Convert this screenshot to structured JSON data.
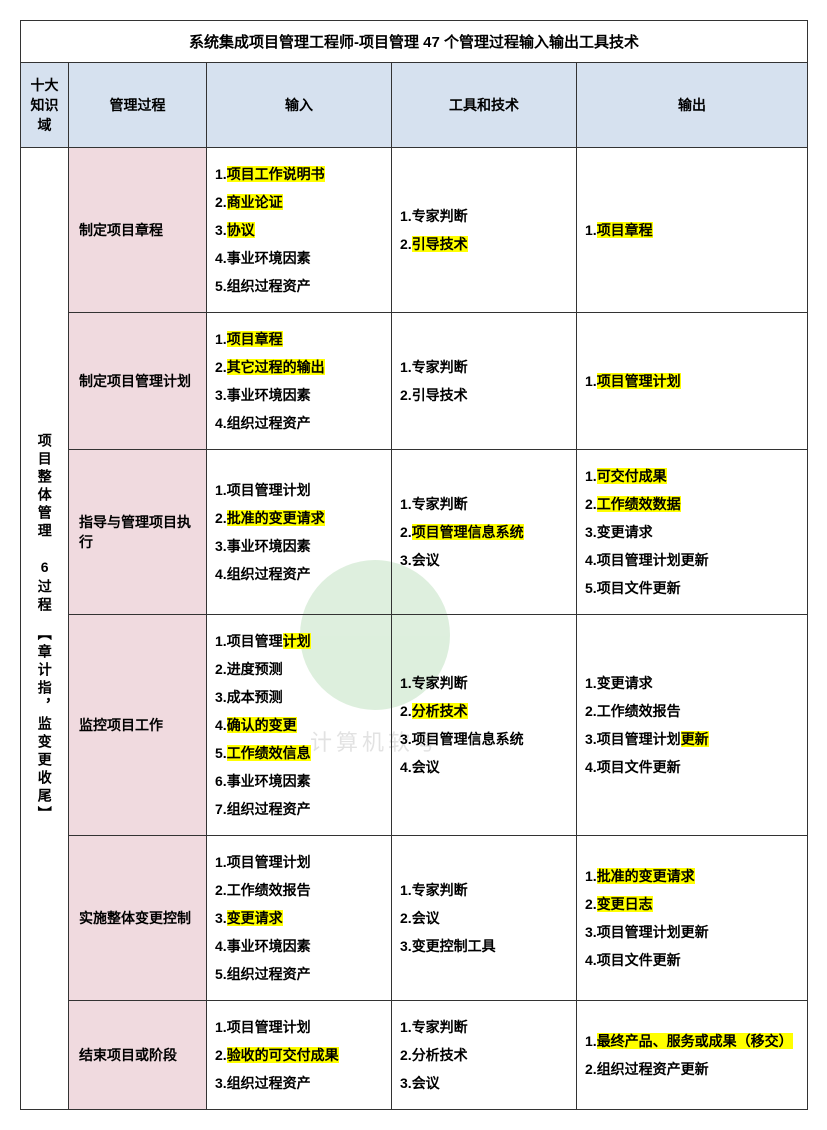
{
  "title": "系统集成项目管理工程师-项目管理 47 个管理过程输入输出工具技术",
  "headers": {
    "domain": "十大知识域",
    "process": "管理过程",
    "inputs": "输入",
    "tools": "工具和技术",
    "outputs": "输出"
  },
  "domain_label": "项目整体管理　6过程　【章计指，监变更收尾】",
  "rows": [
    {
      "process": "制定项目章程",
      "inputs": [
        {
          "n": "1.",
          "t": "项目工作说明书",
          "hl": true
        },
        {
          "n": "2.",
          "t": "商业论证",
          "hl": true
        },
        {
          "n": "3.",
          "t": "协议",
          "hl": true
        },
        {
          "n": "4.",
          "t": "事业环境因素",
          "hl": false
        },
        {
          "n": "5.",
          "t": "组织过程资产",
          "hl": false
        }
      ],
      "tools": [
        {
          "n": "1.",
          "t": "专家判断",
          "hl": false
        },
        {
          "n": "2.",
          "t": "引导技术",
          "hl": true
        }
      ],
      "outputs": [
        {
          "n": "1.",
          "t": "项目章程",
          "hl": true
        }
      ]
    },
    {
      "process": "制定项目管理计划",
      "inputs": [
        {
          "n": "1.",
          "t": "项目章程",
          "hl": true
        },
        {
          "n": "2.",
          "t": "其它过程的输出",
          "hl": true
        },
        {
          "n": "3.",
          "t": "事业环境因素",
          "hl": false
        },
        {
          "n": "4.",
          "t": "组织过程资产",
          "hl": false
        }
      ],
      "tools": [
        {
          "n": "1.",
          "t": "专家判断",
          "hl": false
        },
        {
          "n": "2.",
          "t": "引导技术",
          "hl": false
        }
      ],
      "outputs": [
        {
          "n": "1.",
          "t": "项目管理计划",
          "hl": true
        }
      ]
    },
    {
      "process": "指导与管理项目执行",
      "inputs": [
        {
          "n": "1.",
          "t": "项目管理计划",
          "hl": false
        },
        {
          "n": "2.",
          "t": "批准的变更请求",
          "hl": true
        },
        {
          "n": "3.",
          "t": "事业环境因素",
          "hl": false
        },
        {
          "n": "4.",
          "t": "组织过程资产",
          "hl": false
        }
      ],
      "tools": [
        {
          "n": "1.",
          "t": "专家判断",
          "hl": false
        },
        {
          "n": "2.",
          "t": "项目管理信息系统",
          "hl": true
        },
        {
          "n": "3.",
          "t": "会议",
          "hl": false
        }
      ],
      "outputs": [
        {
          "n": "1.",
          "t": "可交付成果",
          "hl": true
        },
        {
          "n": "2.",
          "t": "工作绩效数据",
          "hl": true
        },
        {
          "n": "3.",
          "t": "变更请求",
          "hl": false
        },
        {
          "n": "4.",
          "t": "项目管理计划更新",
          "hl": false
        },
        {
          "n": "5.",
          "t": "项目文件更新",
          "hl": false
        }
      ]
    },
    {
      "process": "监控项目工作",
      "inputs": [
        {
          "n": "1.",
          "t": "项目管理计划",
          "hl": false,
          "hlpart": "计划"
        },
        {
          "n": "2.",
          "t": "进度预测",
          "hl": false
        },
        {
          "n": "3.",
          "t": "成本预测",
          "hl": false
        },
        {
          "n": "4.",
          "t": "确认的变更",
          "hl": true
        },
        {
          "n": "5.",
          "t": "工作绩效信息",
          "hl": true
        },
        {
          "n": "6.",
          "t": "事业环境因素",
          "hl": false
        },
        {
          "n": "7.",
          "t": "组织过程资产",
          "hl": false
        }
      ],
      "tools": [
        {
          "n": "1.",
          "t": "专家判断",
          "hl": false
        },
        {
          "n": "2.",
          "t": "分析技术",
          "hl": true
        },
        {
          "n": "3.",
          "t": "项目管理信息系统",
          "hl": false
        },
        {
          "n": "4.",
          "t": "会议",
          "hl": false
        }
      ],
      "outputs": [
        {
          "n": "1.",
          "t": "变更请求",
          "hl": false
        },
        {
          "n": "2.",
          "t": "工作绩效报告",
          "hl": false
        },
        {
          "n": "3.",
          "t": "项目管理计划更新",
          "hl": false,
          "hlpart": "更新"
        },
        {
          "n": "4.",
          "t": "项目文件更新",
          "hl": false
        }
      ]
    },
    {
      "process": "实施整体变更控制",
      "inputs": [
        {
          "n": "1.",
          "t": "项目管理计划",
          "hl": false
        },
        {
          "n": "2.",
          "t": "工作绩效报告",
          "hl": false
        },
        {
          "n": "3.",
          "t": "变更请求",
          "hl": true
        },
        {
          "n": "4.",
          "t": "事业环境因素",
          "hl": false
        },
        {
          "n": "5.",
          "t": "组织过程资产",
          "hl": false
        }
      ],
      "tools": [
        {
          "n": "1.",
          "t": "专家判断",
          "hl": false
        },
        {
          "n": "2.",
          "t": "会议",
          "hl": false
        },
        {
          "n": "3.",
          "t": "变更控制工具",
          "hl": false
        }
      ],
      "outputs": [
        {
          "n": "1.",
          "t": "批准的变更请求",
          "hl": true
        },
        {
          "n": "2.",
          "t": "变更日志",
          "hl": true
        },
        {
          "n": "3.",
          "t": "项目管理计划更新",
          "hl": false
        },
        {
          "n": "4.",
          "t": "项目文件更新",
          "hl": false
        }
      ]
    },
    {
      "process": "结束项目或阶段",
      "inputs": [
        {
          "n": "1.",
          "t": "项目管理计划",
          "hl": false
        },
        {
          "n": "2.",
          "t": "验收的可交付成果",
          "hl": true
        },
        {
          "n": "3.",
          "t": "组织过程资产",
          "hl": false
        }
      ],
      "tools": [
        {
          "n": "1.",
          "t": "专家判断",
          "hl": false
        },
        {
          "n": "2.",
          "t": "分析技术",
          "hl": false
        },
        {
          "n": "3.",
          "t": "会议",
          "hl": false
        }
      ],
      "outputs": [
        {
          "n": "1.",
          "t": "最终产品、服务或成果（移交）",
          "hl": true
        },
        {
          "n": "2.",
          "t": "组织过程资产更新",
          "hl": false
        }
      ]
    }
  ],
  "watermark_text": "计算机软考",
  "colors": {
    "header_bg": "#d6e1ef",
    "process_bg": "#f0dadf",
    "highlight": "#ffff00",
    "border": "#333333",
    "watermark_green": "#4aa94a"
  }
}
